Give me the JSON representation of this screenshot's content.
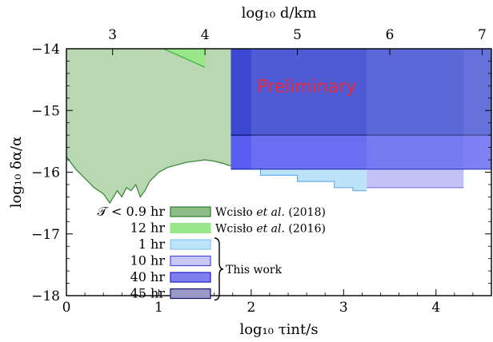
{
  "chart_data": {
    "type": "area",
    "xlabel": "log₁₀ τint/s",
    "ylabel": "log₁₀ δα/α",
    "top_xlabel": "log₁₀ d/km",
    "xlim": [
      0,
      4.6
    ],
    "ylim": [
      -18,
      -14
    ],
    "x_ticks": [
      0,
      1,
      2,
      3,
      4
    ],
    "y_ticks": [
      -18,
      -17,
      -16,
      -15,
      -14
    ],
    "top_ticks": [
      {
        "label": "3",
        "at_x": 0.5
      },
      {
        "label": "4",
        "at_x": 1.5
      },
      {
        "label": "5",
        "at_x": 2.5
      },
      {
        "label": "6",
        "at_x": 3.5
      },
      {
        "label": "7",
        "at_x": 4.5
      }
    ],
    "annotation": {
      "text": "Preliminary",
      "color": "#e4283b"
    },
    "regions": [
      {
        "name": "Wcisło et al. (2018)",
        "color": "#b9d8b2",
        "edge": "#3d8b3d",
        "boundary": [
          [
            0,
            -15.75
          ],
          [
            0.1,
            -15.95
          ],
          [
            0.2,
            -16.1
          ],
          [
            0.3,
            -16.25
          ],
          [
            0.4,
            -16.35
          ],
          [
            0.47,
            -16.5
          ],
          [
            0.55,
            -16.3
          ],
          [
            0.6,
            -16.4
          ],
          [
            0.65,
            -16.25
          ],
          [
            0.7,
            -16.3
          ],
          [
            0.75,
            -16.2
          ],
          [
            0.8,
            -16.4
          ],
          [
            0.85,
            -16.3
          ],
          [
            0.9,
            -16.15
          ],
          [
            1.0,
            -16.0
          ],
          [
            1.1,
            -15.92
          ],
          [
            1.2,
            -15.88
          ],
          [
            1.3,
            -15.84
          ],
          [
            1.4,
            -15.82
          ],
          [
            1.5,
            -15.8
          ],
          [
            1.6,
            -15.82
          ],
          [
            1.7,
            -15.86
          ],
          [
            1.78,
            -15.9
          ]
        ],
        "top": -14
      },
      {
        "name": "Wcisło et al. (2016)",
        "color": "#98e88a",
        "edge": "#3fae3f",
        "boundary": [
          [
            1.05,
            -14
          ],
          [
            1.5,
            -14
          ],
          [
            1.5,
            -14.3
          ]
        ]
      },
      {
        "name": "1 hr",
        "color": "#bce3f7",
        "xrange": [
          1.78,
          3.25
        ],
        "y_bottom": -16.3
      },
      {
        "name": "10 hr",
        "color": "#c2c2f8",
        "xrange": [
          3.25,
          4.3
        ],
        "y_bottom": -16.25
      },
      {
        "name": "40 hr",
        "color": "#5a5ef0",
        "xrange": [
          1.78,
          4.6
        ],
        "y_bottom": -15.95
      },
      {
        "name": "45 hr",
        "color": "#3b49d1",
        "xrange": [
          1.78,
          4.6
        ],
        "y_bottom": -15.4
      }
    ],
    "legend": [
      {
        "duration": "𝒯 < 0.9 hr",
        "label": "Wcisło",
        "label_it": "et al.",
        "label_year": "(2018)",
        "color": "#8fbd86",
        "edge": "#2f7a2f"
      },
      {
        "duration": "12 hr",
        "label": "Wcisło",
        "label_it": "et al.",
        "label_year": "(2016)",
        "color": "#98e88a",
        "edge": "#98e88a"
      },
      {
        "duration": "1 hr",
        "label": "",
        "color": "#bce3f7",
        "edge": "#8cc7ee"
      },
      {
        "duration": "10 hr",
        "label": "",
        "color": "#c9c9f7",
        "edge": "#4a4ad8"
      },
      {
        "duration": "40 hr",
        "label": "",
        "color": "#7f7ff0",
        "edge": "#2020c8"
      },
      {
        "duration": "45 hr",
        "label": "",
        "color": "#9a9ac6",
        "edge": "#151570"
      }
    ],
    "bracket_label": "This work"
  }
}
